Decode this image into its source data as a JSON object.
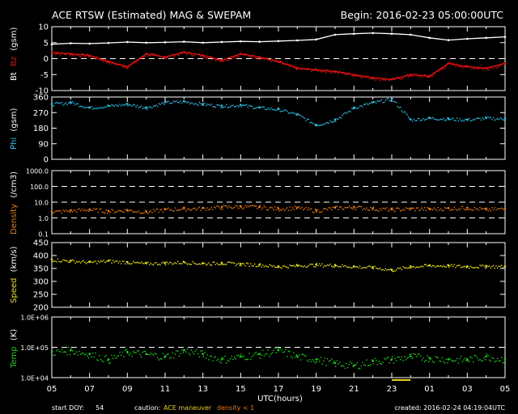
{
  "header": {
    "title": "ACE RTSW (Estimated) MAG & SWEPAM",
    "begin": "Begin: 2016-02-23 05:00:00UTC"
  },
  "footer": {
    "start_doy_label": "start DOY:",
    "start_doy_value": "54",
    "caution_label": "caution:",
    "caution_maneuver": "ACE maneuver",
    "caution_density": "density < 1",
    "created": "created: 2016-02-24 04:19:04UTC"
  },
  "colors": {
    "bt": "#ffffff",
    "bz": "#e01010",
    "phi": "#30c0e8",
    "density": "#e87a18",
    "speed": "#e8e020",
    "temp": "#20d020",
    "maneuver": "#e8d020",
    "frame": "#ffffff"
  },
  "chart_data": [
    {
      "type": "line",
      "panel": "mag",
      "ylabel_parts": [
        "Bt",
        "Bz",
        "(gsm)"
      ],
      "ylim": [
        -10,
        10
      ],
      "yticks": [
        "10",
        "5",
        "0",
        "-5",
        "-10"
      ],
      "ref_lines": [
        0
      ],
      "series": [
        {
          "name": "Bt",
          "x": [
            0,
            1,
            2,
            3,
            4,
            5,
            6,
            7,
            8,
            9,
            10,
            11,
            12,
            13,
            14,
            15,
            16,
            17,
            18,
            19,
            20,
            21,
            22,
            23,
            24
          ],
          "values": [
            4.5,
            4.8,
            4.7,
            4.9,
            5.2,
            5.0,
            5.1,
            5.3,
            5.0,
            5.2,
            5.4,
            5.3,
            5.5,
            5.7,
            6.0,
            7.5,
            7.8,
            8.0,
            7.8,
            7.5,
            6.5,
            5.8,
            6.2,
            6.5,
            6.8
          ]
        },
        {
          "name": "Bz",
          "x": [
            0,
            1,
            2,
            3,
            4,
            5,
            6,
            7,
            8,
            9,
            10,
            11,
            12,
            13,
            14,
            15,
            16,
            17,
            18,
            19,
            20,
            21,
            22,
            23,
            24
          ],
          "values": [
            2.0,
            1.5,
            1.0,
            -1.0,
            -2.5,
            1.5,
            0.5,
            2.0,
            1.0,
            -0.5,
            1.5,
            0.5,
            -1.0,
            -3.0,
            -3.5,
            -4.0,
            -5.0,
            -6.0,
            -6.5,
            -5.0,
            -5.5,
            -1.5,
            -2.5,
            -3.0,
            -1.5
          ]
        }
      ]
    },
    {
      "type": "scatter",
      "panel": "phi",
      "ylabel_parts": [
        "Phi",
        "(gsm)"
      ],
      "ylim": [
        0,
        360
      ],
      "yticks": [
        "360",
        "270",
        "180",
        "90",
        "0"
      ],
      "series": [
        {
          "name": "Phi",
          "x": [
            0,
            1,
            2,
            3,
            4,
            5,
            6,
            7,
            8,
            9,
            10,
            11,
            12,
            13,
            14,
            15,
            16,
            17,
            18,
            19,
            20,
            21,
            22,
            23,
            24
          ],
          "values": [
            320,
            330,
            300,
            310,
            320,
            300,
            330,
            335,
            320,
            310,
            315,
            300,
            290,
            260,
            200,
            230,
            300,
            330,
            350,
            230,
            240,
            235,
            230,
            240,
            235
          ]
        }
      ]
    },
    {
      "type": "scatter",
      "panel": "density",
      "ylabel_parts": [
        "Density",
        "(/cm3)"
      ],
      "scale": "log",
      "ylim": [
        0.1,
        1000
      ],
      "yticks": [
        "1000.0",
        "100.0",
        "10.0",
        "1.0",
        "0.1"
      ],
      "ref_lines": [
        100,
        10,
        1
      ],
      "series": [
        {
          "name": "Density",
          "x": [
            0,
            1,
            2,
            3,
            4,
            5,
            6,
            7,
            8,
            9,
            10,
            11,
            12,
            13,
            14,
            15,
            16,
            17,
            18,
            19,
            20,
            21,
            22,
            23,
            24
          ],
          "values": [
            2.5,
            3.0,
            3.5,
            2.8,
            3.2,
            2.5,
            3.5,
            4.0,
            4.2,
            5.0,
            5.5,
            5.0,
            4.0,
            4.5,
            3.0,
            4.5,
            5.0,
            4.0,
            3.5,
            4.0,
            3.8,
            4.2,
            4.5,
            3.5,
            4.0
          ]
        }
      ]
    },
    {
      "type": "scatter",
      "panel": "speed",
      "ylabel_parts": [
        "Speed",
        "(km/s)"
      ],
      "ylim": [
        200,
        450
      ],
      "yticks": [
        "450",
        "400",
        "350",
        "300",
        "250",
        "200"
      ],
      "series": [
        {
          "name": "Speed",
          "x": [
            0,
            1,
            2,
            3,
            4,
            5,
            6,
            7,
            8,
            9,
            10,
            11,
            12,
            13,
            14,
            15,
            16,
            17,
            18,
            19,
            20,
            21,
            22,
            23,
            24
          ],
          "values": [
            385,
            380,
            375,
            380,
            375,
            370,
            372,
            375,
            370,
            372,
            368,
            365,
            358,
            362,
            365,
            363,
            358,
            355,
            345,
            358,
            362,
            362,
            358,
            360,
            358
          ]
        }
      ]
    },
    {
      "type": "scatter",
      "panel": "temp",
      "ylabel_parts": [
        "Temp",
        "(K)"
      ],
      "scale": "log",
      "ylim": [
        10000,
        1000000
      ],
      "yticks": [
        "1.0E+06",
        "1.0E+05",
        "1.0E+04"
      ],
      "ref_lines": [
        100000
      ],
      "series": [
        {
          "name": "Temp",
          "x": [
            0,
            1,
            2,
            3,
            4,
            5,
            6,
            7,
            8,
            9,
            10,
            11,
            12,
            13,
            14,
            15,
            16,
            17,
            18,
            19,
            20,
            21,
            22,
            23,
            24
          ],
          "values": [
            70000,
            80000,
            60000,
            40000,
            70000,
            60000,
            50000,
            80000,
            60000,
            40000,
            50000,
            60000,
            80000,
            50000,
            40000,
            30000,
            25000,
            35000,
            40000,
            50000,
            45000,
            40000,
            40000,
            50000,
            40000
          ]
        }
      ]
    },
    {
      "type": "axis",
      "panel": "time",
      "xlabel": "UTC(hours)",
      "xticks": [
        "05",
        "07",
        "09",
        "11",
        "13",
        "15",
        "17",
        "19",
        "21",
        "23",
        "01",
        "03",
        "05"
      ],
      "maneuver_interval": [
        18.0,
        19.0
      ]
    }
  ]
}
